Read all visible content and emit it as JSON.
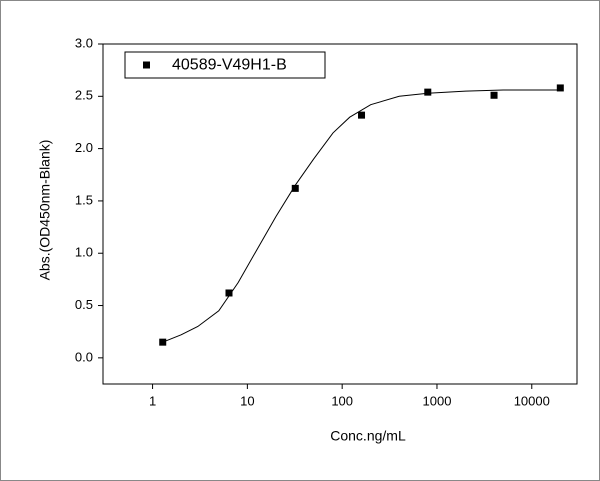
{
  "chart_data": {
    "type": "scatter",
    "title": null,
    "xlabel": "Conc.ng/mL",
    "ylabel": "Abs.(OD450nm-Blank)",
    "xscale": "log",
    "series": [
      {
        "name": "40589-V49H1-B",
        "color": "#000000",
        "x": [
          1.28,
          6.4,
          32,
          160,
          800,
          4000,
          20000
        ],
        "values": [
          0.15,
          0.62,
          1.62,
          2.32,
          2.54,
          2.51,
          2.58
        ]
      }
    ],
    "fit_curve": {
      "color": "#000000",
      "x": [
        1.28,
        2,
        3,
        5,
        8,
        12,
        20,
        32,
        50,
        80,
        120,
        200,
        400,
        800,
        2000,
        5000,
        20000
      ],
      "values": [
        0.15,
        0.22,
        0.3,
        0.45,
        0.72,
        1.0,
        1.35,
        1.65,
        1.9,
        2.15,
        2.3,
        2.42,
        2.5,
        2.53,
        2.55,
        2.56,
        2.56
      ]
    },
    "xlim": [
      0.3,
      30000
    ],
    "xticks": [
      1,
      10,
      100,
      1000,
      10000
    ],
    "ylim": [
      -0.25,
      3.0
    ],
    "yticks": [
      {
        "value": 0,
        "label": "0.0"
      },
      {
        "value": 0.5,
        "label": "0.5"
      },
      {
        "value": 1,
        "label": "1.0"
      },
      {
        "value": 1.5,
        "label": "1.5"
      },
      {
        "value": 2,
        "label": "2.0"
      },
      {
        "value": 2.5,
        "label": "2.5"
      },
      {
        "value": 3,
        "label": "3.0"
      }
    ],
    "legend": "top-left"
  }
}
